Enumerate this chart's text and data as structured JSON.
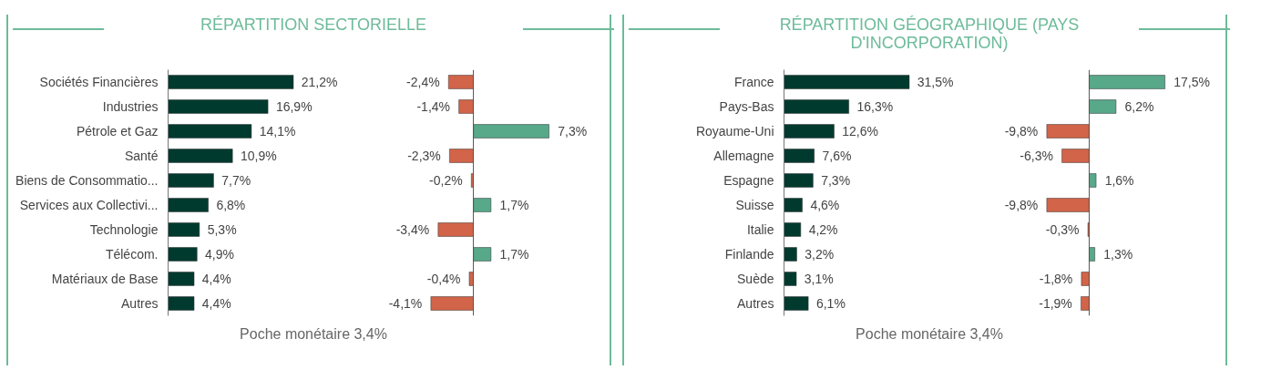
{
  "chart_data": [
    {
      "type": "bar",
      "orientation": "horizontal",
      "title": "RÉPARTITION SECTORIELLE",
      "categories": [
        "Sociétés Financières",
        "Industries",
        "Pétrole et Gaz",
        "Santé",
        "Biens de Consommatio...",
        "Services aux Collectivi...",
        "Technologie",
        "Télécom.",
        "Matériaux de Base",
        "Autres"
      ],
      "values": [
        21.2,
        16.9,
        14.1,
        10.9,
        7.7,
        6.8,
        5.3,
        4.9,
        4.4,
        4.4
      ],
      "color": "#003a2f",
      "value_labels": [
        "21,2%",
        "16,9%",
        "14,1%",
        "10,9%",
        "7,7%",
        "6,8%",
        "5,3%",
        "4,9%",
        "4,4%",
        "4,4%"
      ],
      "tick_labels": "y",
      "annotations": [
        "Poche monétaire 3,4%"
      ]
    },
    {
      "type": "bar",
      "orientation": "horizontal",
      "categories": [
        null,
        null,
        null,
        null,
        null,
        null,
        null,
        null,
        null,
        null
      ],
      "values": [
        -2.4,
        -1.4,
        7.3,
        -2.3,
        -0.2,
        1.7,
        -3.4,
        1.7,
        -0.4,
        -4.1
      ],
      "colors": [
        "#d2644a",
        "#d2644a",
        "#58a88a",
        "#d2644a",
        "#d2644a",
        "#58a88a",
        "#d2644a",
        "#58a88a",
        "#d2644a",
        "#d2644a"
      ],
      "value_labels": [
        "-2,4%",
        "-1,4%",
        "7,3%",
        "-2,3%",
        "-0,2%",
        "1,7%",
        "-3,4%",
        "1,7%",
        "-0,4%",
        "-4,1%"
      ],
      "tick_labels": false
    },
    {
      "type": "bar",
      "orientation": "horizontal",
      "title": "RÉPARTITION GÉOGRAPHIQUE (PAYS D'INCORPORATION)",
      "categories": [
        "France",
        "Pays-Bas",
        "Royaume-Uni",
        "Allemagne",
        "Espagne",
        "Suisse",
        "Italie",
        "Finlande",
        "Suède",
        "Autres"
      ],
      "values": [
        31.5,
        16.3,
        12.6,
        7.6,
        7.3,
        4.6,
        4.2,
        3.2,
        3.1,
        6.1
      ],
      "color": "#003a2f",
      "value_labels": [
        "31,5%",
        "16,3%",
        "12,6%",
        "7,6%",
        "7,3%",
        "4,6%",
        "4,2%",
        "3,2%",
        "3,1%",
        "6,1%"
      ],
      "tick_labels": "y",
      "annotations": [
        "Poche monétaire 3,4%"
      ]
    },
    {
      "type": "bar",
      "orientation": "horizontal",
      "categories": [
        null,
        null,
        null,
        null,
        null,
        null,
        null,
        null,
        null,
        null
      ],
      "values": [
        17.5,
        6.2,
        -9.8,
        -6.3,
        1.6,
        -9.8,
        -0.3,
        1.3,
        -1.8,
        -1.9
      ],
      "colors": [
        "#58a88a",
        "#58a88a",
        "#d2644a",
        "#d2644a",
        "#58a88a",
        "#d2644a",
        "#d2644a",
        "#58a88a",
        "#d2644a",
        "#d2644a"
      ],
      "value_labels": [
        "17,5%",
        "6,2%",
        "-9,8%",
        "-6,3%",
        "1,6%",
        "-9,8%",
        "-0,3%",
        "1,3%",
        "-1,8%",
        "-1,9%"
      ],
      "tick_labels": false
    }
  ]
}
